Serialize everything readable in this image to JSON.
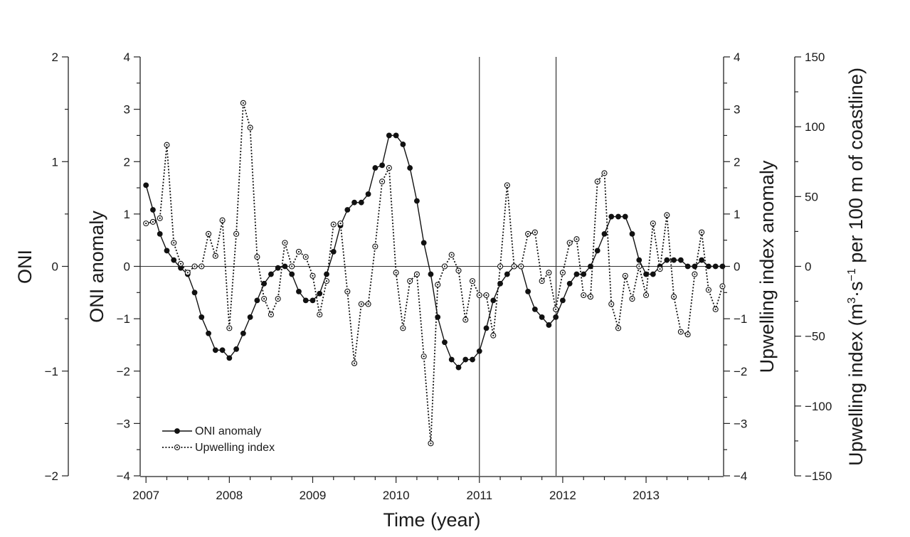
{
  "chart_data": {
    "type": "line",
    "xlabel": "Time (year)",
    "x_tick_labels": [
      "2007",
      "2008",
      "2009",
      "2010",
      "2011",
      "2012",
      "2013"
    ],
    "x_ticks": [
      2007,
      2008,
      2009,
      2010,
      2011,
      2012,
      2013
    ],
    "xlim": [
      2006.93,
      2013.93
    ],
    "vertical_lines_at": [
      2011.0,
      2011.92
    ],
    "zero_line": true,
    "axes": {
      "oni": {
        "label": "ONI",
        "ylim": [
          -2,
          2
        ],
        "tick_labels": [
          "2",
          "1",
          "0",
          "−1",
          "−2"
        ],
        "tick_values": [
          2,
          1,
          0,
          -1,
          -2
        ]
      },
      "oni_anomaly": {
        "label": "ONI anomaly",
        "ylim": [
          -4,
          4
        ],
        "tick_labels": [
          "4",
          "3",
          "2",
          "1",
          "0",
          "−1",
          "−2",
          "−3",
          "−4"
        ],
        "tick_values": [
          4,
          3,
          2,
          1,
          0,
          -1,
          -2,
          -3,
          -4
        ]
      },
      "upwelling_anomaly": {
        "label": "Upwelling index anomaly",
        "ylim": [
          -4,
          4
        ],
        "tick_labels": [
          "4",
          "3",
          "2",
          "1",
          "0",
          "−1",
          "−2",
          "−3",
          "−4"
        ],
        "tick_values": [
          4,
          3,
          2,
          1,
          0,
          -1,
          -2,
          -3,
          -4
        ]
      },
      "upwelling": {
        "label_main": "Upwelling index (m",
        "label_sup1": "3",
        "label_mid": "·s",
        "label_sup2": "−1",
        "label_end": " per 100 m of coastline)",
        "ylim": [
          -150,
          150
        ],
        "tick_labels": [
          "150",
          "100",
          "50",
          "0",
          "−50",
          "−100",
          "−150"
        ],
        "tick_values": [
          150,
          100,
          50,
          0,
          -50,
          -100,
          -150
        ]
      }
    },
    "legend": {
      "position": "bottom-left",
      "entries": [
        "ONI anomaly",
        "Upwelling index"
      ]
    },
    "series": [
      {
        "name": "ONI anomaly",
        "style": "solid-filled-dots",
        "start": 2007.0,
        "step_months": 1,
        "values": [
          1.55,
          1.08,
          0.62,
          0.3,
          0.12,
          -0.03,
          -0.15,
          -0.5,
          -0.97,
          -1.28,
          -1.6,
          -1.6,
          -1.75,
          -1.58,
          -1.28,
          -0.97,
          -0.65,
          -0.33,
          -0.15,
          -0.03,
          0.0,
          -0.15,
          -0.48,
          -0.65,
          -0.65,
          -0.52,
          -0.15,
          0.28,
          0.78,
          1.08,
          1.22,
          1.22,
          1.38,
          1.88,
          1.93,
          2.5,
          2.5,
          2.33,
          1.88,
          1.25,
          0.45,
          -0.15,
          -0.97,
          -1.45,
          -1.78,
          -1.93,
          -1.78,
          -1.78,
          -1.62,
          -1.18,
          -0.65,
          -0.33,
          -0.15,
          0.0,
          0.0,
          -0.48,
          -0.82,
          -0.97,
          -1.12,
          -0.97,
          -0.65,
          -0.33,
          -0.15,
          -0.15,
          0.0,
          0.3,
          0.62,
          0.95,
          0.95,
          0.95,
          0.62,
          0.12,
          -0.15,
          -0.15,
          0.0,
          0.12,
          0.12,
          0.12,
          0.0,
          0.0,
          0.12,
          0.0,
          0.0,
          0.0
        ]
      },
      {
        "name": "Upwelling index",
        "style": "dotted-open-circles",
        "start": 2007.0,
        "step_months": 1,
        "values": [
          0.82,
          0.85,
          0.92,
          2.32,
          0.45,
          0.05,
          -0.12,
          0.0,
          0.0,
          0.62,
          0.2,
          0.88,
          -1.18,
          0.62,
          3.12,
          2.65,
          0.18,
          -0.62,
          -0.92,
          -0.62,
          0.45,
          0.0,
          0.28,
          0.18,
          -0.18,
          -0.92,
          -0.28,
          0.8,
          0.82,
          -0.48,
          -1.85,
          -0.72,
          -0.72,
          0.38,
          1.62,
          1.88,
          -0.12,
          -1.18,
          -0.28,
          -0.15,
          -1.72,
          -3.38,
          -0.35,
          0.0,
          0.22,
          -0.08,
          -1.02,
          -0.28,
          -0.55,
          -0.55,
          -1.32,
          0.0,
          1.55,
          0.0,
          0.0,
          0.62,
          0.65,
          -0.28,
          -0.12,
          -0.82,
          -0.12,
          0.45,
          0.52,
          -0.55,
          -0.58,
          1.62,
          1.78,
          -0.72,
          -1.18,
          -0.18,
          -0.62,
          0.0,
          -0.55,
          0.82,
          -0.05,
          0.98,
          -0.58,
          -1.25,
          -1.3,
          -0.15,
          0.65,
          -0.45,
          -0.82,
          -0.38
        ]
      }
    ]
  }
}
